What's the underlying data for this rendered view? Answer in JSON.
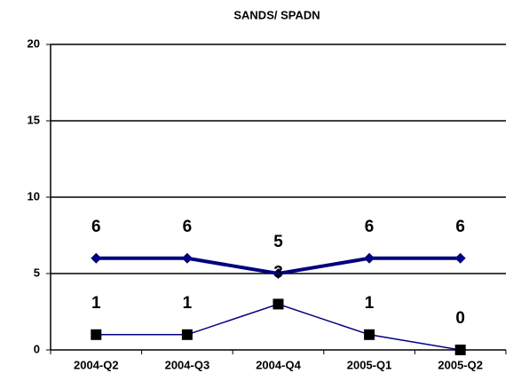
{
  "chart_data": {
    "type": "line",
    "title": "SANDS/ SPADN",
    "categories": [
      "2004-Q2",
      "2004-Q3",
      "2004-Q4",
      "2005-Q1",
      "2005-Q2"
    ],
    "series": [
      {
        "color": "#000080",
        "marker": "diamond",
        "values": [
          6,
          6,
          5,
          6,
          6
        ]
      },
      {
        "color": "#000080",
        "marker": "square",
        "values": [
          1,
          1,
          3,
          1,
          0
        ]
      }
    ],
    "ylim": [
      0,
      20
    ],
    "yticks": [
      0,
      5,
      10,
      15,
      20
    ],
    "grid": true
  }
}
